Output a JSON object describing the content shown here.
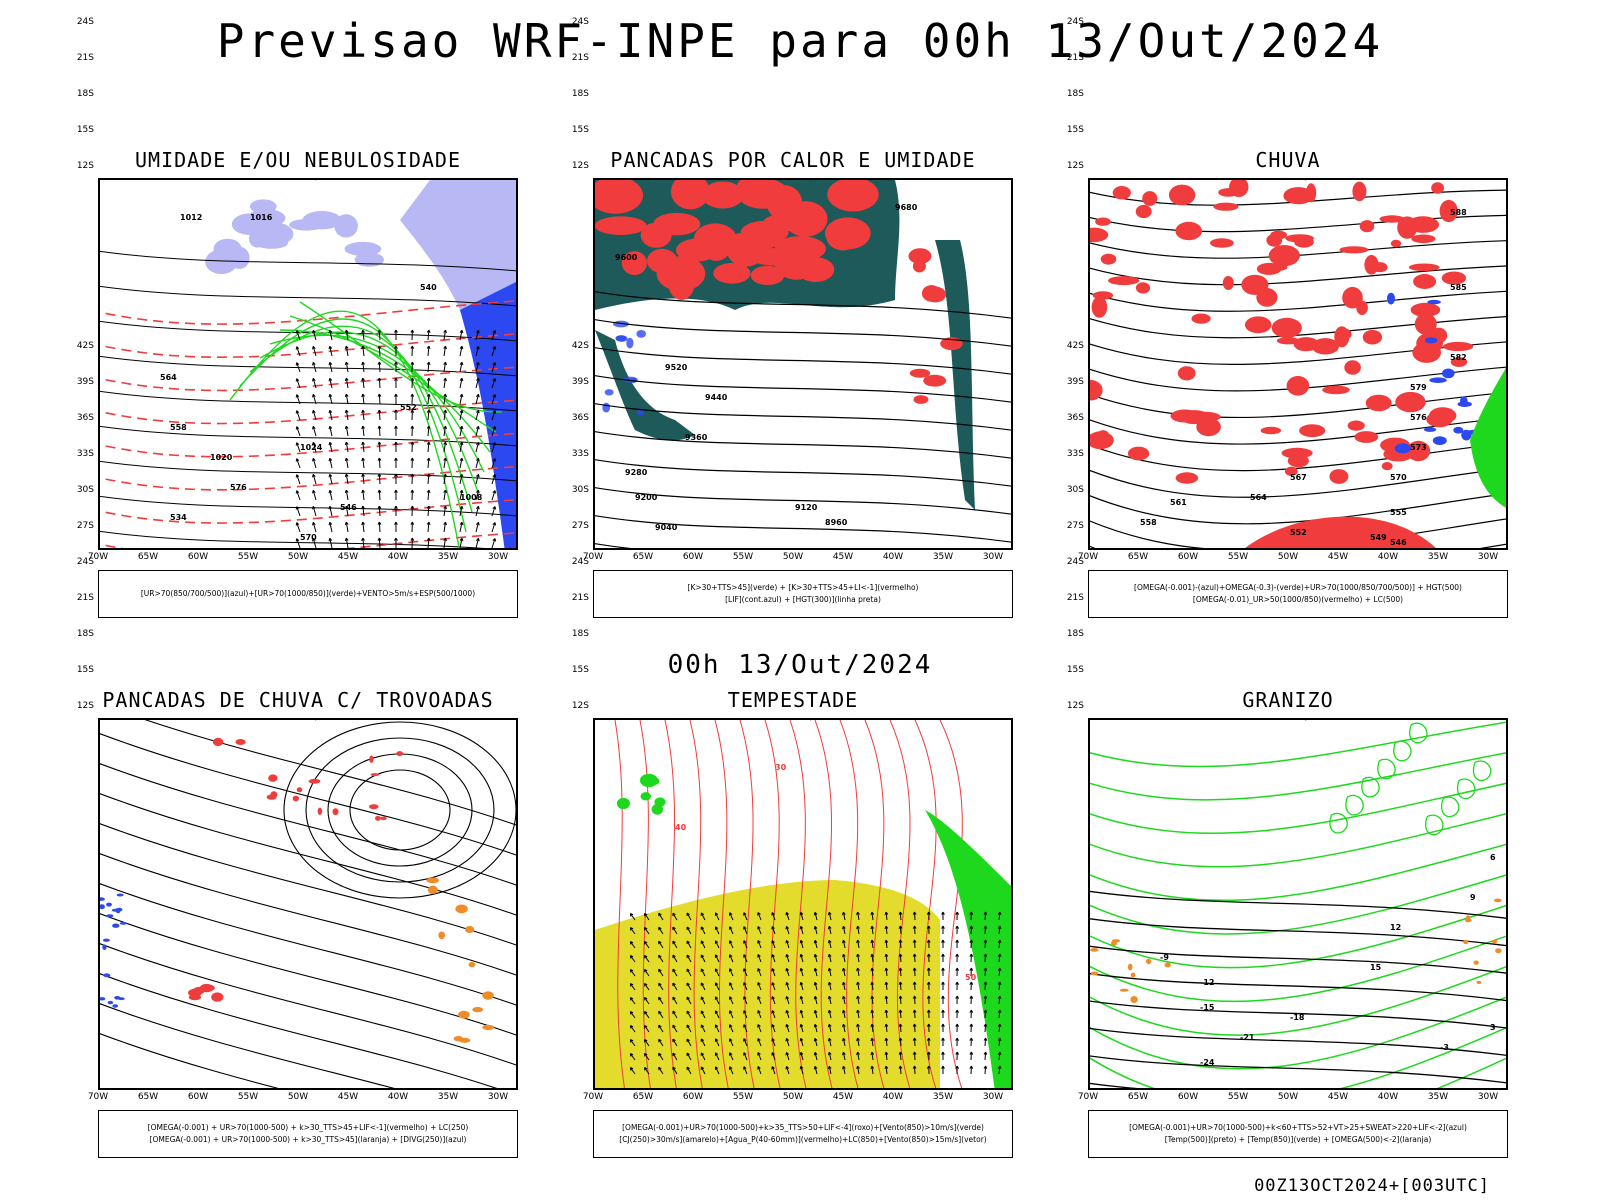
{
  "page": {
    "title": "Previsao WRF-INPE  para 00h 13/Out/2024",
    "mid_date": "00h 13/Out/2024",
    "footer": "00Z13OCT2024+[003UTC]"
  },
  "axes": {
    "lat_labels": [
      "12S",
      "15S",
      "18S",
      "21S",
      "24S",
      "27S",
      "30S",
      "33S",
      "36S",
      "39S",
      "42S"
    ],
    "lon_labels": [
      "70W",
      "65W",
      "60W",
      "55W",
      "50W",
      "45W",
      "40W",
      "35W",
      "30W"
    ]
  },
  "colors": {
    "red": "#f03c3c",
    "green": "#1ed81e",
    "blue": "#2c48f0",
    "light_blue": "#b8b8f4",
    "dark_teal": "#1f5a5a",
    "yellow": "#e4dc2c",
    "orange": "#f08c28"
  },
  "panels": [
    {
      "title": "UMIDADE E/OU NEBULOSIDADE",
      "legend": [
        "[UR>70(850/700/500)](azul)+[UR>70(1000/850)](verde)+VENTO>5m/s+ESP(500/1000)"
      ],
      "labels": [
        "1012",
        "1016",
        "1020",
        "1024",
        "576",
        "570",
        "564",
        "558",
        "552",
        "546",
        "540",
        "534",
        "1008"
      ]
    },
    {
      "title": "PANCADAS POR CALOR E UMIDADE",
      "legend": [
        "[K>30+TTS>45](verde) + [K>30+TTS>45+LI<-1](vermelho)",
        "[LIF](cont.azul) + [HGT(300)](linha preta)"
      ],
      "labels": [
        "9680",
        "9600",
        "9520",
        "9440",
        "9360",
        "9280",
        "9200",
        "9120",
        "9040",
        "8960"
      ]
    },
    {
      "title": "CHUVA",
      "legend": [
        "[OMEGA(-0.001)-(azul)+OMEGA(-0.3)-(verde)+UR>70(1000/850/700/500)] + HGT(500)",
        "[OMEGA(-0.01)_UR>50(1000/850)(vermelho) + LC(500)"
      ],
      "labels": [
        "588",
        "585",
        "582",
        "579",
        "576",
        "573",
        "570",
        "567",
        "564",
        "561",
        "558",
        "555",
        "552",
        "549",
        "546"
      ]
    },
    {
      "title": "PANCADAS DE CHUVA C/ TROVOADAS",
      "legend": [
        "[OMEGA(-0.001) + UR>70(1000-500) + k>30_TTS>45+LIF<-1](vermelho) + LC(250)",
        "[OMEGA(-0.001) + UR>70(1000-500) + k>30_TTS>45](laranja) + [DIVG(250)](azul)"
      ],
      "labels": []
    },
    {
      "title": "TEMPESTADE",
      "legend": [
        "[OMEGA(-0.001)+UR>70(1000-500)+k>35_TTS>50+LIF<-4](roxo)+[Vento(850)>10m/s](verde)",
        "[CJ(250)>30m/s](amarelo)+[Agua_P(40-60mm)](vermelho)+LC(850)+[Vento(850)>15m/s](vetor)"
      ],
      "labels": [
        "30",
        "40",
        "50"
      ]
    },
    {
      "title": "GRANIZO",
      "legend": [
        "[OMEGA(-0.001)+UR>70(1000-500)+k<60+TTS>52+VT>25+SWEAT>220+LIF<-2](azul)",
        "[Temp(500)](preto) + [Temp(850)](verde) + [OMEGA(500)<-2](laranja)"
      ],
      "labels": [
        "-9",
        "-12",
        "-15",
        "-18",
        "-21",
        "-24",
        "15",
        "12",
        "9",
        "6",
        "3",
        "-3"
      ]
    }
  ]
}
